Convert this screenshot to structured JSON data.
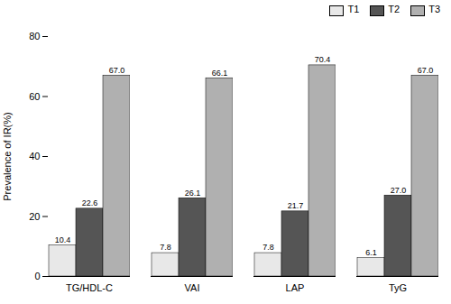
{
  "chart_data": {
    "type": "bar",
    "categories": [
      "TG/HDL-C",
      "VAI",
      "LAP",
      "TyG"
    ],
    "series": [
      {
        "name": "T1",
        "color": "#e8e8e8",
        "values": [
          10.4,
          7.8,
          7.8,
          6.1
        ],
        "value_labels": [
          "10.4",
          "7.8",
          "7.8",
          "6.1"
        ]
      },
      {
        "name": "T2",
        "color": "#555555",
        "values": [
          22.6,
          26.1,
          21.7,
          27.0
        ],
        "value_labels": [
          "22.6",
          "26.1",
          "21.7",
          "27.0"
        ]
      },
      {
        "name": "T3",
        "color": "#b0b0b0",
        "values": [
          67.0,
          66.1,
          70.4,
          67.0
        ],
        "value_labels": [
          "67.0",
          "66.1",
          "70.4",
          "67.0"
        ]
      }
    ],
    "ylabel": "Prevalence of IR(%)",
    "ylim": [
      0,
      80
    ],
    "yticks": [
      0,
      20,
      40,
      60,
      80
    ],
    "grid": false,
    "legend": "upper right",
    "data_labels": true
  }
}
